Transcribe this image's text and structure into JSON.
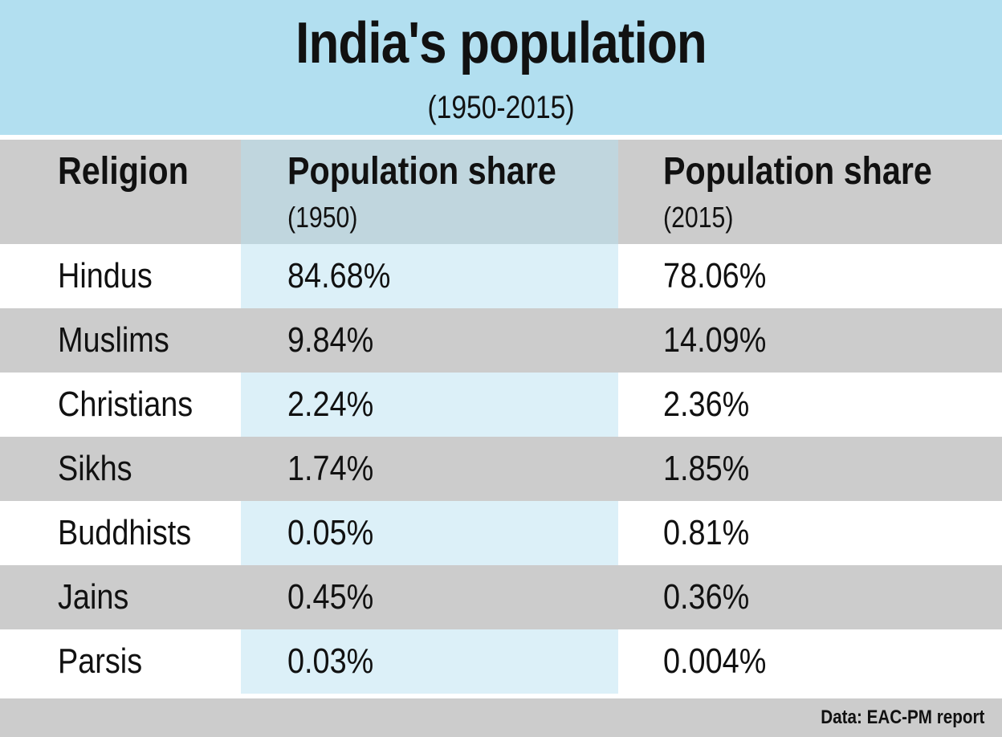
{
  "header": {
    "title": "India's population",
    "subtitle": "(1950-2015)"
  },
  "chart_data": {
    "type": "table",
    "title": "India's population",
    "subtitle": "(1950-2015)",
    "columns": [
      {
        "label": "Religion",
        "sub": ""
      },
      {
        "label": "Population share",
        "sub": "(1950)"
      },
      {
        "label": "Population share",
        "sub": "(2015)"
      }
    ],
    "rows": [
      [
        "Hindus",
        "84.68%",
        "78.06%"
      ],
      [
        "Muslims",
        "9.84%",
        "14.09%"
      ],
      [
        "Christians",
        "2.24%",
        "2.36%"
      ],
      [
        "Sikhs",
        "1.74%",
        "1.85%"
      ],
      [
        "Buddhists",
        "0.05%",
        "0.81%"
      ],
      [
        "Jains",
        "0.45%",
        "0.36%"
      ],
      [
        "Parsis",
        "0.03%",
        "0.004%"
      ]
    ],
    "source": "Data: EAC-PM report"
  },
  "colors": {
    "header_bg": "#b2dff0",
    "band_grey": "#cccccc",
    "col_highlight": "#dcf0f8",
    "col_highlight_header": "#c0d6de"
  }
}
